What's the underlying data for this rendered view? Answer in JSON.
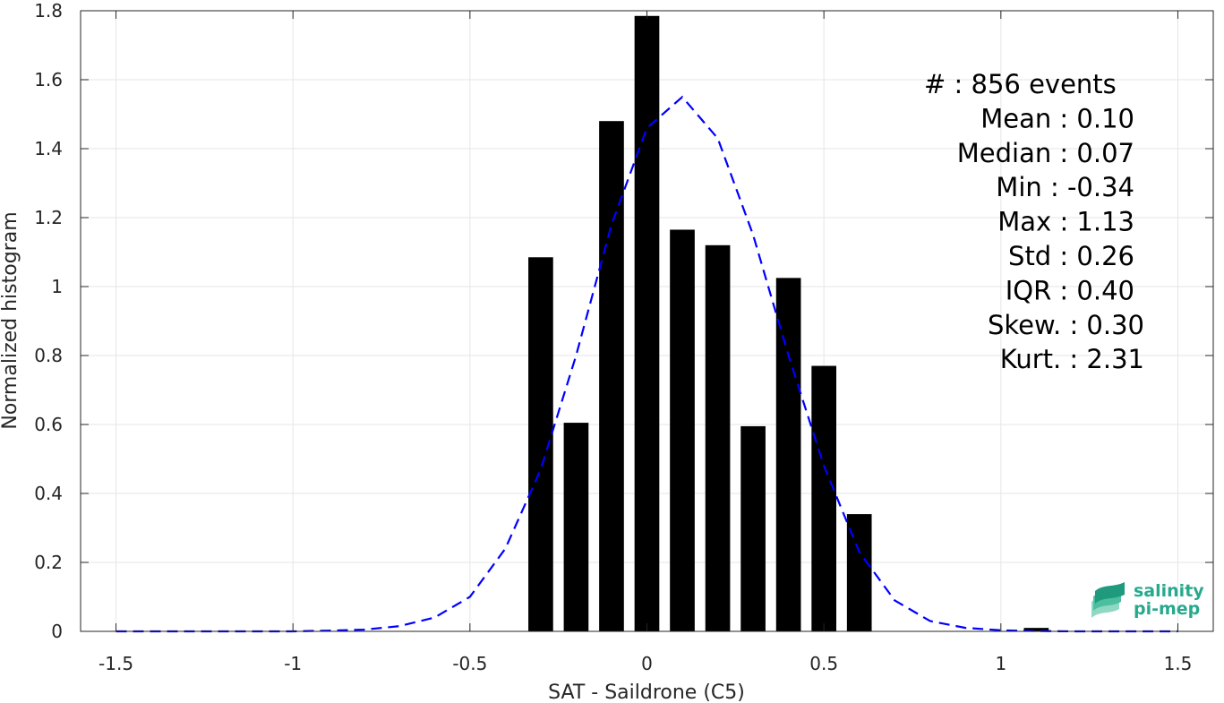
{
  "chart_data": {
    "type": "bar",
    "xlabel": "SAT - Saildrone (C5)",
    "ylabel": "Normalized histogram",
    "xlim": [
      -1.6,
      1.6
    ],
    "ylim": [
      0,
      1.8
    ],
    "grid": true,
    "x_ticks": [
      -1.5,
      -1,
      -0.5,
      0,
      0.5,
      1,
      1.5
    ],
    "x_tick_labels": [
      "-1.5",
      "-1",
      "-0.5",
      "0",
      "0.5",
      "1",
      "1.5"
    ],
    "y_ticks": [
      0,
      0.2,
      0.4,
      0.6,
      0.8,
      1,
      1.2,
      1.4,
      1.6,
      1.8
    ],
    "y_tick_labels": [
      "0",
      "0.2",
      "0.4",
      "0.6",
      "0.8",
      "1",
      "1.2",
      "1.4",
      "1.6",
      "1.8"
    ],
    "bars": {
      "color": "#000000",
      "x": [
        -0.3,
        -0.2,
        -0.1,
        0.0,
        0.1,
        0.2,
        0.3,
        0.4,
        0.5,
        0.6,
        1.1
      ],
      "values": [
        1.085,
        0.605,
        1.48,
        1.785,
        1.165,
        1.12,
        0.595,
        1.025,
        0.77,
        0.34,
        0.01
      ],
      "width": 0.07
    },
    "fit_curve": {
      "style": "dashed",
      "color": "#0000ff",
      "x": [
        -1.5,
        -1.4,
        -1.3,
        -1.2,
        -1.1,
        -1.0,
        -0.9,
        -0.8,
        -0.7,
        -0.6,
        -0.5,
        -0.4,
        -0.3,
        -0.2,
        -0.1,
        0.0,
        0.1,
        0.2,
        0.3,
        0.4,
        0.5,
        0.6,
        0.7,
        0.8,
        0.9,
        1.0,
        1.1,
        1.2,
        1.3,
        1.4,
        1.5
      ],
      "y": [
        0.0,
        0.0,
        0.0,
        0.0,
        0.0,
        0.0,
        0.002,
        0.005,
        0.015,
        0.04,
        0.1,
        0.24,
        0.47,
        0.8,
        1.18,
        1.46,
        1.55,
        1.43,
        1.15,
        0.8,
        0.48,
        0.23,
        0.09,
        0.03,
        0.01,
        0.003,
        0.001,
        0.0,
        0.0,
        0.0,
        0.0
      ]
    },
    "stats": [
      {
        "key": "stat_events",
        "text": "#  : 856 events",
        "anchor": "start"
      },
      {
        "key": "stat_mean",
        "text": "Mean : 0.10",
        "anchor": "end"
      },
      {
        "key": "stat_median",
        "text": "Median : 0.07",
        "anchor": "end"
      },
      {
        "key": "stat_min",
        "text": "Min : -0.34",
        "anchor": "end"
      },
      {
        "key": "stat_max",
        "text": "Max : 1.13",
        "anchor": "end"
      },
      {
        "key": "stat_std",
        "text": "Std : 0.26",
        "anchor": "end"
      },
      {
        "key": "stat_iqr",
        "text": "IQR : 0.40",
        "anchor": "end"
      },
      {
        "key": "stat_skew",
        "text": "Skew. : 0.30",
        "anchor": "end"
      },
      {
        "key": "stat_kurt",
        "text": "Kurt. : 2.31",
        "anchor": "end"
      }
    ]
  },
  "logo": {
    "line1": "salinity",
    "line2": "pi-mep",
    "color": "#27a98d"
  }
}
